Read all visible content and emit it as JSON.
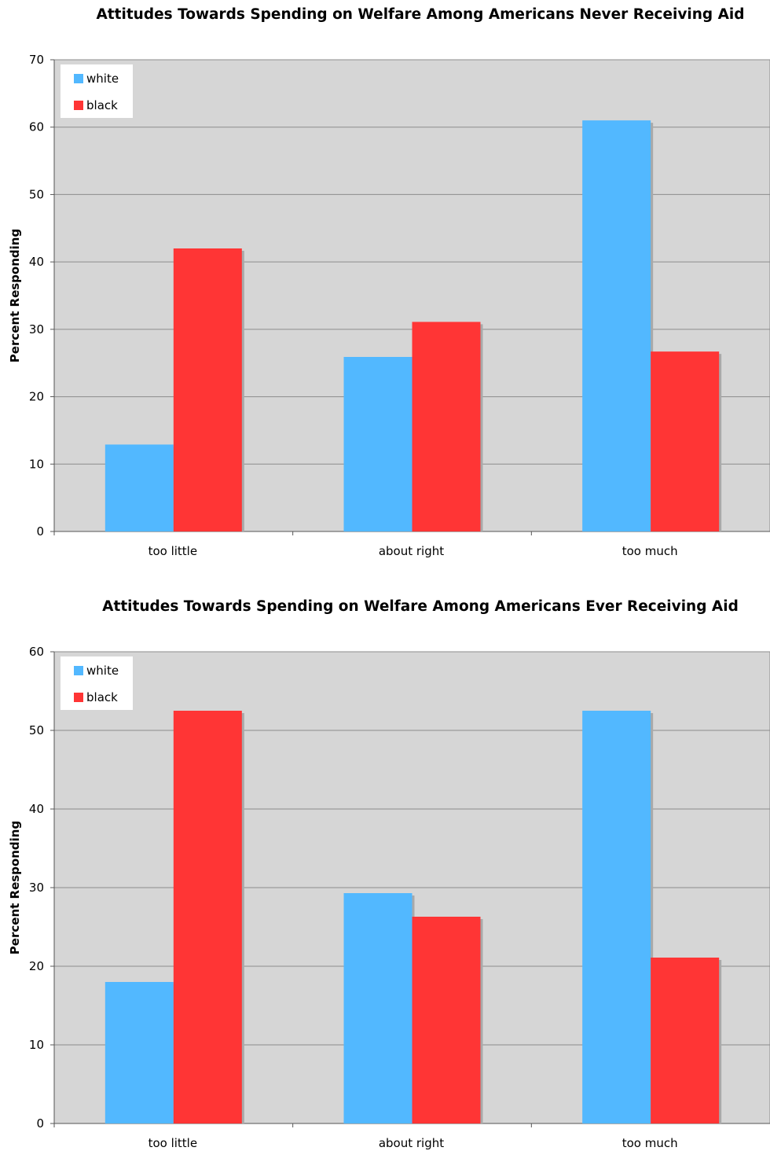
{
  "chart_data": [
    {
      "type": "bar",
      "title": "Attitudes Towards Spending on Welfare Among Americans Never Receiving Aid",
      "ylabel": "Percent Responding",
      "xlabel": "",
      "categories": [
        "too little",
        "about right",
        "too much"
      ],
      "series": [
        {
          "name": "white",
          "color": "#52b8ff",
          "values": [
            12.9,
            25.9,
            61.0
          ]
        },
        {
          "name": "black",
          "color": "#ff3535",
          "values": [
            42.0,
            31.1,
            26.7
          ]
        }
      ],
      "ylim": [
        0,
        70
      ],
      "yticks": [
        0,
        10,
        20,
        30,
        40,
        50,
        60,
        70
      ],
      "grid": true,
      "legend": "top-left",
      "plot_background": "#d6d6d6"
    },
    {
      "type": "bar",
      "title": "Attitudes Towards Spending on Welfare Among Americans Ever Receiving Aid",
      "ylabel": "Percent Responding",
      "xlabel": "",
      "categories": [
        "too little",
        "about right",
        "too much"
      ],
      "series": [
        {
          "name": "white",
          "color": "#52b8ff",
          "values": [
            18.0,
            29.3,
            52.5
          ]
        },
        {
          "name": "black",
          "color": "#ff3535",
          "values": [
            52.5,
            26.3,
            21.1
          ]
        }
      ],
      "ylim": [
        0,
        60
      ],
      "yticks": [
        0,
        10,
        20,
        30,
        40,
        50,
        60
      ],
      "grid": true,
      "legend": "top-left",
      "plot_background": "#d6d6d6"
    }
  ]
}
